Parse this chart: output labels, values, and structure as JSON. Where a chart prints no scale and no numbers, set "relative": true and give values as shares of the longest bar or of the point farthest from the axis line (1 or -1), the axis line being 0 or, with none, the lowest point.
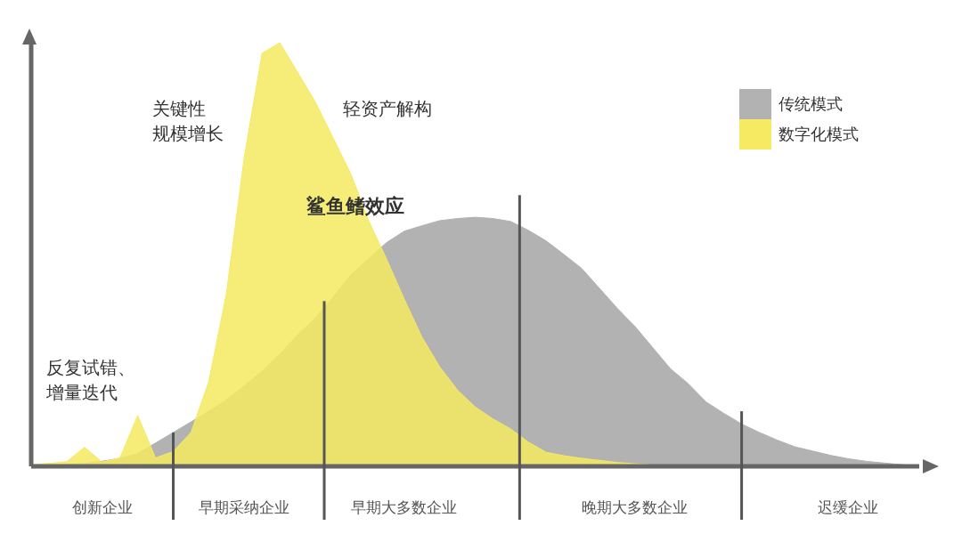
{
  "chart_data": {
    "type": "area",
    "relative": true,
    "legend": "top right",
    "categories": [
      null,
      null,
      null,
      null,
      "创新企业",
      null,
      null,
      null,
      null,
      null,
      null,
      null,
      "早期采纳企业",
      null,
      null,
      null,
      null,
      null,
      null,
      null,
      null,
      "早期大多数企业",
      null,
      null,
      null,
      null,
      null,
      null,
      null,
      null,
      null,
      null,
      null,
      null,
      "晚期大多数企业",
      null,
      null,
      null,
      null,
      null,
      null,
      null,
      null,
      null,
      null,
      null,
      "迟缓企业",
      null,
      null,
      null,
      null
    ],
    "series": [
      {
        "name": "传统模式",
        "color": "#b2b2b2",
        "values": [
          0,
          0.002,
          0.005,
          0.007,
          0.012,
          0.019,
          0.03,
          0.055,
          0.08,
          0.105,
          0.13,
          0.157,
          0.19,
          0.225,
          0.265,
          0.31,
          0.35,
          0.4,
          0.452,
          0.49,
          0.528,
          0.555,
          0.568,
          0.58,
          0.585,
          0.588,
          0.585,
          0.578,
          0.557,
          0.532,
          0.5,
          0.467,
          0.42,
          0.373,
          0.33,
          0.28,
          0.23,
          0.195,
          0.152,
          0.125,
          0.1,
          0.08,
          0.062,
          0.046,
          0.036,
          0.026,
          0.018,
          0.012,
          0.008,
          0.004,
          0
        ]
      },
      {
        "name": "数字化模式",
        "color": "#f5ea62",
        "values": [
          0.004,
          0.007,
          0.011,
          0.045,
          0.01,
          0.02,
          0.12,
          0.02,
          0.035,
          0.08,
          0.2,
          0.41,
          0.73,
          0.975,
          1,
          0.93,
          0.86,
          0.775,
          0.69,
          0.58,
          0.49,
          0.395,
          0.305,
          0.235,
          0.18,
          0.14,
          0.112,
          0.088,
          0.057,
          0.033,
          0.025,
          0.019,
          0.014,
          0.009,
          0.006,
          0.003,
          0,
          0,
          0,
          0,
          0,
          0,
          0,
          0,
          0,
          0,
          0,
          0,
          0,
          0,
          0
        ]
      }
    ],
    "annotations": [
      "反复试错、",
      "增量迭代",
      "关键性",
      "规模增长",
      "轻资产解构",
      "鲨鱼鳍效应"
    ]
  }
}
